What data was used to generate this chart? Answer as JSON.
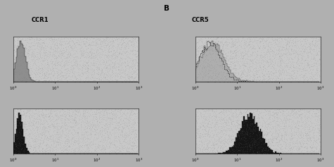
{
  "title_left": "CCR1",
  "title_right": "CCR5",
  "section_label": "B",
  "xmin": 1,
  "xmax": 1000,
  "fig_bg": "#c8c8c8",
  "panel_bg": "#c8c8c8",
  "top_left_fill": "#888888",
  "top_right_fill": "#aaaaaa",
  "bottom_left_fill": "#111111",
  "bottom_right_fill": "#111111",
  "noise_level": 0.04
}
